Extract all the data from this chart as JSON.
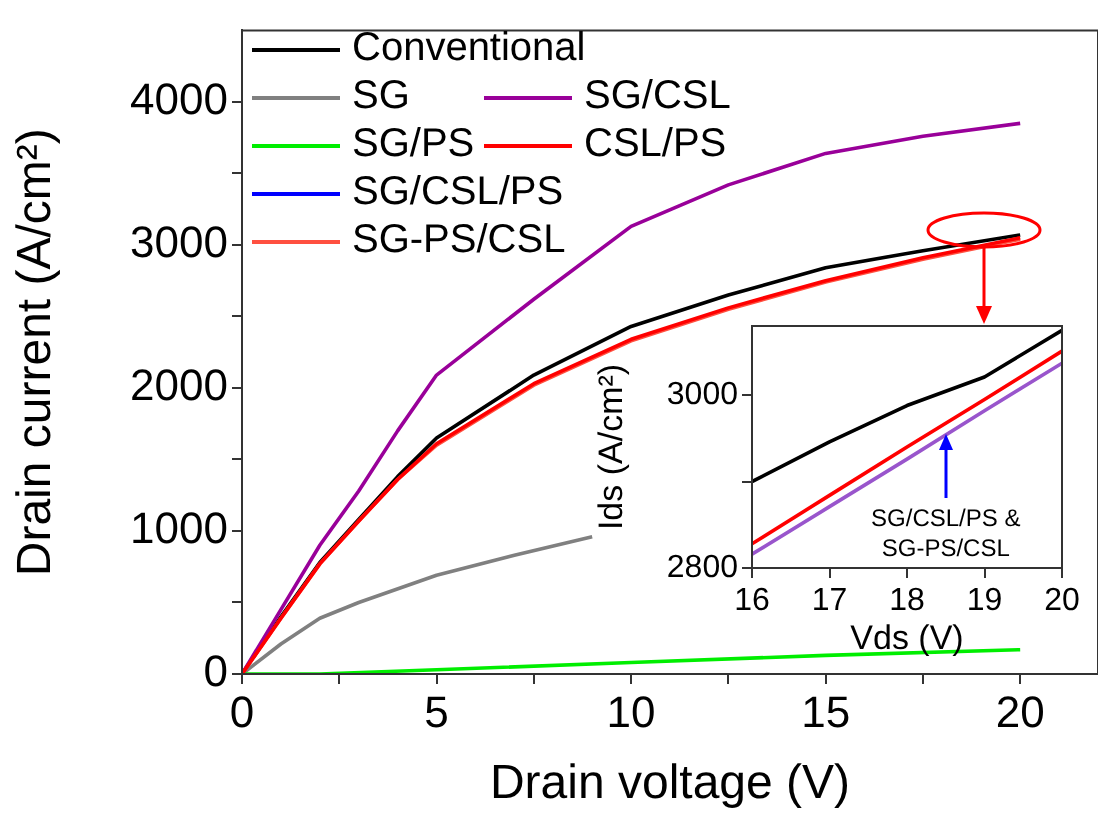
{
  "chart_data": [
    {
      "type": "line",
      "xlabel": "Drain voltage (V)",
      "ylabel": "Drain current (A/cm²)",
      "xlim": [
        0,
        22
      ],
      "xticks": [
        0,
        {
          "value": 2.5,
          "label": null
        },
        5,
        {
          "value": 7.5,
          "label": null
        },
        10,
        {
          "value": 12.5,
          "label": null
        },
        15,
        {
          "value": 17.5,
          "label": null
        },
        20
      ],
      "ylim": [
        0,
        4500
      ],
      "yticks": [
        0,
        {
          "value": 500,
          "label": null
        },
        1000,
        {
          "value": 1500,
          "label": null
        },
        2000,
        {
          "value": 2500,
          "label": null
        },
        3000,
        {
          "value": 3500,
          "label": null
        },
        4000
      ],
      "grid": false,
      "legend": "top left",
      "line_style": "solid",
      "marker": "none",
      "series": [
        {
          "name": "Conventional",
          "color": "#000000",
          "x": [
            0,
            1,
            2,
            3,
            4,
            5,
            7.5,
            10,
            12.5,
            15,
            17.5,
            20
          ],
          "values": [
            0,
            400,
            780,
            1080,
            1380,
            1650,
            2090,
            2430,
            2650,
            2840,
            2960,
            3070
          ]
        },
        {
          "name": "SG",
          "color": "#808080",
          "x": [
            0,
            1,
            2,
            3,
            5,
            7,
            9
          ],
          "values": [
            0,
            210,
            390,
            500,
            690,
            830,
            960
          ]
        },
        {
          "name": "SG/PS",
          "color": "#00ee00",
          "x": [
            0,
            2,
            5,
            10,
            15,
            20
          ],
          "values": [
            0,
            0,
            30,
            80,
            130,
            170
          ]
        },
        {
          "name": "SG/CSL/PS",
          "color": "#0000ff"
        },
        {
          "name": "SG-PS/CSL",
          "color": "#ff5040",
          "x": [
            0,
            1,
            2,
            3,
            4,
            5,
            7.5,
            10,
            12.5,
            15,
            17.5,
            20
          ],
          "values": [
            0,
            390,
            770,
            1070,
            1360,
            1600,
            2020,
            2330,
            2550,
            2740,
            2900,
            3040
          ]
        },
        {
          "name": "SG/CSL",
          "color": "#990099",
          "x": [
            0,
            1,
            2,
            3,
            4,
            5,
            7.5,
            10,
            12.5,
            15,
            17.5,
            20
          ],
          "values": [
            0,
            450,
            900,
            1280,
            1700,
            2090,
            2620,
            3130,
            3420,
            3640,
            3760,
            3850
          ]
        },
        {
          "name": "CSL/PS",
          "color": "#ff0000",
          "x": [
            0,
            1,
            2,
            3,
            4,
            5,
            7.5,
            10,
            12.5,
            15,
            17.5,
            20
          ],
          "values": [
            0,
            390,
            770,
            1070,
            1360,
            1610,
            2030,
            2340,
            2560,
            2750,
            2910,
            3050
          ]
        }
      ]
    },
    {
      "type": "line",
      "xlabel": "Vds (V)",
      "ylabel": "Ids (A/cm²)",
      "x": [
        16,
        17,
        18,
        19,
        20
      ],
      "xlim": [
        16,
        20
      ],
      "xticks": [
        16,
        17,
        18,
        19,
        20
      ],
      "ylim": [
        2800,
        3080
      ],
      "yticks": [
        2800,
        {
          "value": 2900,
          "label": null
        },
        3000
      ],
      "grid": false,
      "line_style": "solid",
      "marker": "none",
      "annotations": [
        {
          "text": "SG/CSL/PS & SG-PS/CSL",
          "x": 18.5,
          "y": 2954
        }
      ],
      "series": [
        {
          "color": "#000000",
          "values": [
            2900,
            2946,
            2988,
            3021,
            3075
          ]
        },
        {
          "color": "#ff0000",
          "values": [
            2828,
            2884,
            2940,
            2995,
            3051
          ]
        },
        {
          "color": "#9955cc",
          "values": [
            2816,
            2871,
            2926,
            2982,
            3037
          ]
        }
      ]
    }
  ]
}
